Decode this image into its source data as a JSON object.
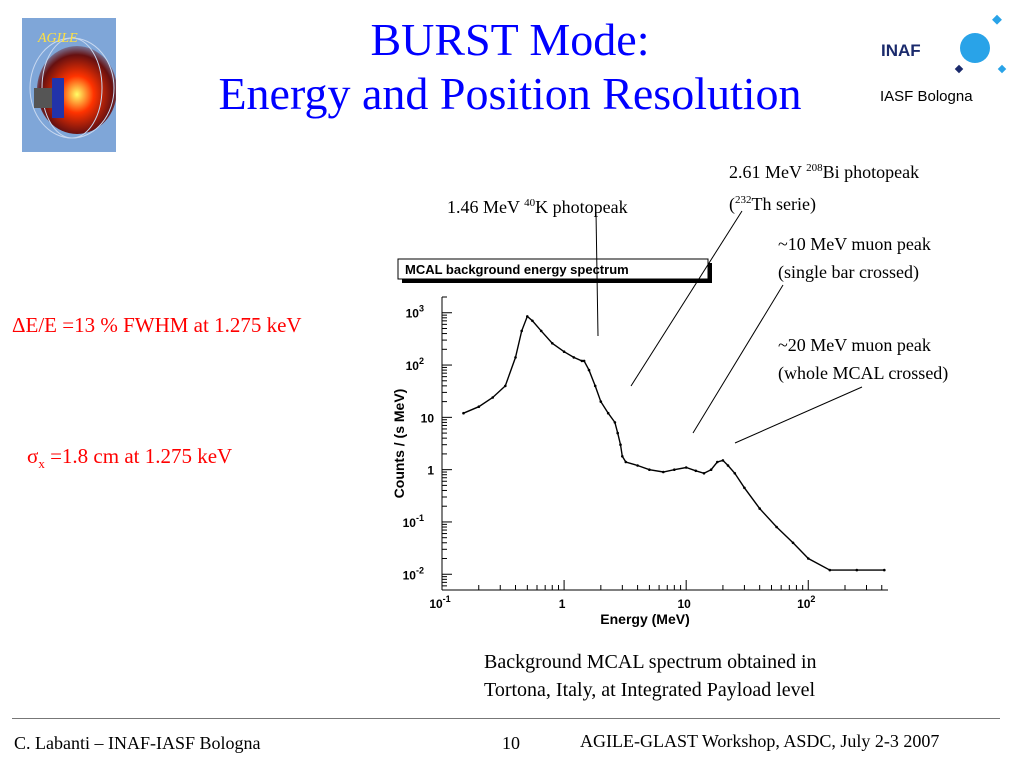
{
  "slide": {
    "title_line1": "BURST Mode:",
    "title_line2": "Energy and Position Resolution",
    "institute": "IASF Bologna",
    "agile_logo_text": "AGILE",
    "inaf_logo_text": "INAF",
    "resolution_energy": "ΔE/E =13 % FWHM at 1.275 keV",
    "resolution_position_symbol": "σ",
    "resolution_position_sub": "x",
    "resolution_position_rest": " =1.8 cm at 1.275 keV",
    "caption_line1": "Background MCAL spectrum obtained in",
    "caption_line2": "Tortona, Italy, at Integrated Payload level",
    "footer_left": "C. Labanti – INAF-IASF Bologna",
    "footer_page": "10",
    "footer_right": "AGILE-GLAST Workshop, ASDC, July 2-3 2007"
  },
  "annotations": {
    "k40_pre": "1.46 MeV ",
    "k40_sup": "40",
    "k40_post": "K photopeak",
    "bi_line1_pre": "2.61 MeV ",
    "bi_line1_sup": "208",
    "bi_line1_post": "Bi photopeak",
    "bi_line2_pre": "(",
    "bi_line2_sup": "232",
    "bi_line2_post": "Th serie)",
    "muon10_line1": "~10 MeV muon peak",
    "muon10_line2": "(single bar crossed)",
    "muon20_line1": "~20 MeV muon peak",
    "muon20_line2": "(whole MCAL crossed)"
  },
  "chart_data": {
    "type": "line",
    "title": "MCAL background energy spectrum",
    "xlabel": "Energy (MeV)",
    "ylabel": "Counts / (s MeV)",
    "xscale": "log",
    "yscale": "log",
    "xlim": [
      0.1,
      450
    ],
    "ylim": [
      0.005,
      2000
    ],
    "x_ticks": [
      {
        "base": "10",
        "exp": "-1",
        "value": 0.1
      },
      {
        "base": "1",
        "exp": "",
        "value": 1
      },
      {
        "base": "10",
        "exp": "",
        "value": 10
      },
      {
        "base": "10",
        "exp": "2",
        "value": 100
      }
    ],
    "y_ticks": [
      {
        "base": "10",
        "exp": "-2",
        "value": 0.01
      },
      {
        "base": "10",
        "exp": "-1",
        "value": 0.1
      },
      {
        "base": "1",
        "exp": "",
        "value": 1
      },
      {
        "base": "10",
        "exp": "",
        "value": 10
      },
      {
        "base": "10",
        "exp": "2",
        "value": 100
      },
      {
        "base": "10",
        "exp": "3",
        "value": 1000
      }
    ],
    "grid": false,
    "series": [
      {
        "color": "#000000",
        "x": [
          0.15,
          0.2,
          0.26,
          0.33,
          0.4,
          0.45,
          0.5,
          0.55,
          0.65,
          0.8,
          1.0,
          1.2,
          1.4,
          1.46,
          1.6,
          1.8,
          2.0,
          2.3,
          2.61,
          2.75,
          2.9,
          3.0,
          3.2,
          4.0,
          5.0,
          6.5,
          8.0,
          10.0,
          12.0,
          14.0,
          16.0,
          18.0,
          20.0,
          22.0,
          25.0,
          30.0,
          40.0,
          55.0,
          75.0,
          100.0,
          150.0,
          250.0,
          420.0
        ],
        "y": [
          12,
          16,
          24,
          40,
          140,
          450,
          850,
          700,
          450,
          260,
          180,
          140,
          120,
          120,
          80,
          40,
          20,
          12,
          8,
          5,
          3,
          1.8,
          1.4,
          1.2,
          1.0,
          0.9,
          1.0,
          1.1,
          0.95,
          0.85,
          1.0,
          1.4,
          1.5,
          1.2,
          0.85,
          0.45,
          0.18,
          0.08,
          0.04,
          0.02,
          0.012,
          0.012,
          0.012
        ]
      }
    ]
  }
}
